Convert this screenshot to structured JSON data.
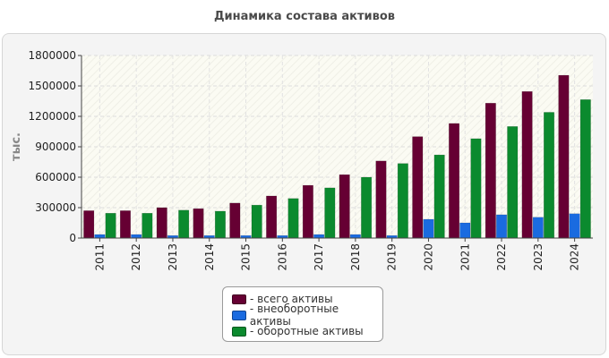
{
  "chart_data": {
    "type": "bar",
    "title": "Динамика состава активов",
    "ylabel": "тыс.",
    "xlabel": "",
    "ylim": [
      0,
      1800000
    ],
    "yticks": [
      0,
      300000,
      600000,
      900000,
      1200000,
      1500000,
      1800000
    ],
    "categories": [
      "2011",
      "2012",
      "2013",
      "2014",
      "2015",
      "2016",
      "2017",
      "2018",
      "2019",
      "2020",
      "2021",
      "2022",
      "2023",
      "2024"
    ],
    "series": [
      {
        "name": "- всего активы",
        "color": "#660033",
        "values": [
          270000,
          270000,
          300000,
          290000,
          345000,
          415000,
          520000,
          625000,
          760000,
          1000000,
          1130000,
          1330000,
          1445000,
          1605000
        ]
      },
      {
        "name": "- внеоборотные активы",
        "color": "#1a6be0",
        "values": [
          35000,
          35000,
          25000,
          25000,
          25000,
          25000,
          35000,
          35000,
          25000,
          185000,
          150000,
          230000,
          205000,
          240000
        ]
      },
      {
        "name": "- оборотные активы",
        "color": "#0b8a2e",
        "values": [
          245000,
          245000,
          275000,
          265000,
          325000,
          390000,
          495000,
          600000,
          735000,
          820000,
          980000,
          1100000,
          1240000,
          1365000
        ]
      }
    ],
    "grid": true,
    "legend": "bottom-center"
  }
}
